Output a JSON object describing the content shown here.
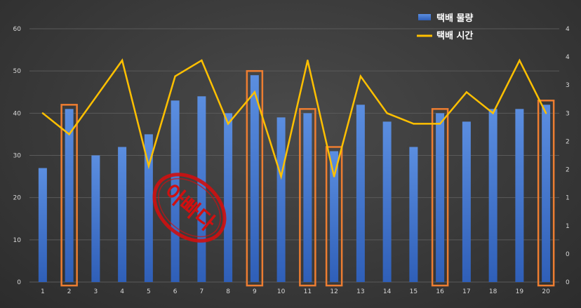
{
  "chart_data": {
    "type": "bar",
    "categories": [
      "1",
      "2",
      "3",
      "4",
      "5",
      "6",
      "7",
      "8",
      "9",
      "10",
      "11",
      "12",
      "13",
      "14",
      "15",
      "16",
      "17",
      "18",
      "19",
      "20"
    ],
    "series": [
      {
        "name": "택배 물량",
        "kind": "bar",
        "axis": "left",
        "values": [
          27,
          41,
          30,
          32,
          35,
          43,
          44,
          40,
          49,
          39,
          40,
          31,
          42,
          38,
          32,
          40,
          38,
          41,
          41,
          42
        ]
      },
      {
        "name": "택배 시간",
        "kind": "line",
        "axis": "right",
        "values": [
          3.2,
          2.8,
          3.5,
          4.2,
          2.2,
          3.9,
          4.2,
          3.0,
          3.6,
          2.0,
          4.2,
          2.0,
          3.9,
          3.2,
          3.0,
          3.0,
          3.6,
          3.2,
          4.2,
          3.2
        ]
      }
    ],
    "y_left": {
      "ylim": [
        0,
        60
      ],
      "ticks": [
        "0",
        "10",
        "20",
        "30",
        "40",
        "50",
        "60"
      ]
    },
    "y_right": {
      "ylim": [
        0,
        4.8
      ],
      "ticks": [
        "0",
        "0",
        "1",
        "1",
        "2",
        "2",
        "3",
        "3",
        "4",
        "4"
      ]
    },
    "highlighted_categories": [
      "2",
      "9",
      "11",
      "12",
      "16",
      "20"
    ],
    "stamp_text": "아빠다",
    "grid": true,
    "legend": "top-right",
    "colors": {
      "bar_top": "#5b8ee0",
      "bar_bottom": "#2f5fb8",
      "line": "#ffc000",
      "highlight": "#ed7d31",
      "stamp": "#d01010",
      "grid": "#5a5a5a"
    }
  }
}
